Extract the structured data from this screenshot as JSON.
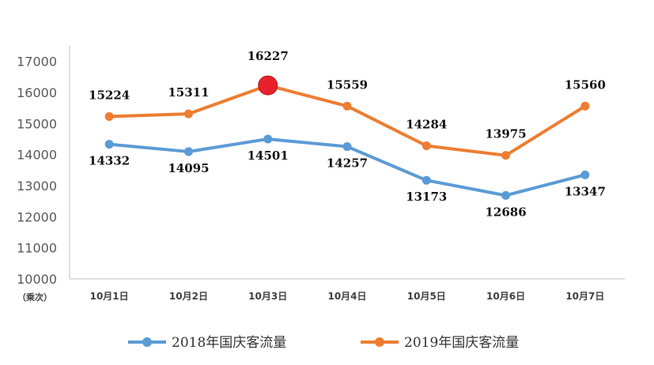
{
  "chart_data": {
    "type": "line",
    "categories": [
      "10月1日",
      "10月2日",
      "10月3日",
      "10月4日",
      "10月5日",
      "10月6日",
      "10月7日"
    ],
    "series": [
      {
        "name": "2018年国庆客流量",
        "values": [
          14332,
          14095,
          14501,
          14257,
          13173,
          12686,
          13347
        ],
        "color": "#5b9bd5"
      },
      {
        "name": "2019年国庆客流量",
        "values": [
          15224,
          15311,
          16227,
          15559,
          14284,
          13975,
          15560
        ],
        "color": "#ed7d31"
      }
    ],
    "highlight": {
      "series": 1,
      "index": 2,
      "color": "#e8202a"
    },
    "yticks": [
      10000,
      11000,
      12000,
      13000,
      14000,
      15000,
      16000,
      17000
    ],
    "ylim": [
      10000,
      17500
    ],
    "unit_label": "（乘次）",
    "legend_position": "bottom",
    "grid": false
  }
}
